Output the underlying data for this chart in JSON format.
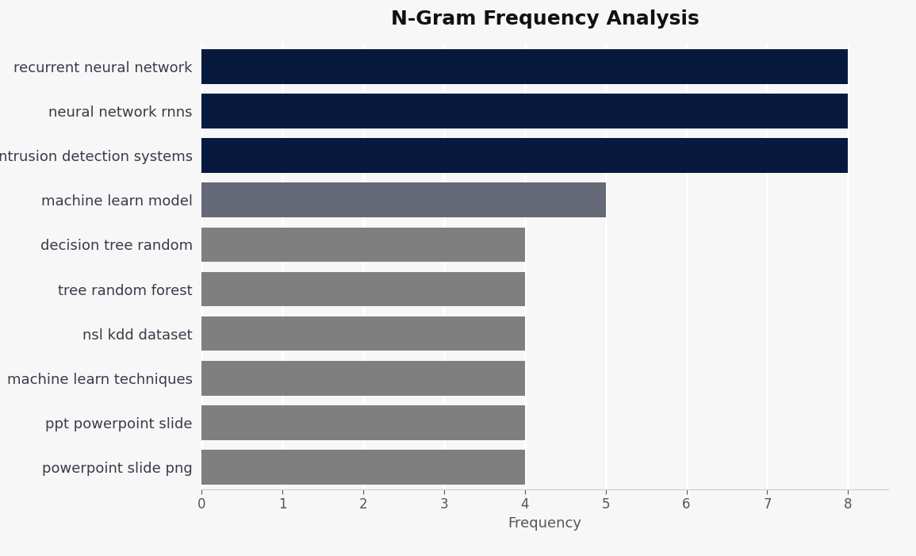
{
  "title": "N-Gram Frequency Analysis",
  "categories": [
    "powerpoint slide png",
    "ppt powerpoint slide",
    "machine learn techniques",
    "nsl kdd dataset",
    "tree random forest",
    "decision tree random",
    "machine learn model",
    "intrusion detection systems",
    "neural network rnns",
    "recurrent neural network"
  ],
  "values": [
    4,
    4,
    4,
    4,
    4,
    4,
    5,
    8,
    8,
    8
  ],
  "bar_colors": [
    "#7f7f7f",
    "#7f7f7f",
    "#7f7f7f",
    "#7f7f7f",
    "#7f7f7f",
    "#7f7f7f",
    "#666977",
    "#071a3e",
    "#071a3e",
    "#071a3e"
  ],
  "xlabel": "Frequency",
  "ylabel": "",
  "xlim": [
    0,
    8.5
  ],
  "xticks": [
    0,
    1,
    2,
    3,
    4,
    5,
    6,
    7,
    8
  ],
  "title_fontsize": 18,
  "label_fontsize": 13,
  "tick_fontsize": 12,
  "background_color": "#f7f7f7",
  "plot_bg_color": "#f7f7f7",
  "bar_height": 0.78
}
